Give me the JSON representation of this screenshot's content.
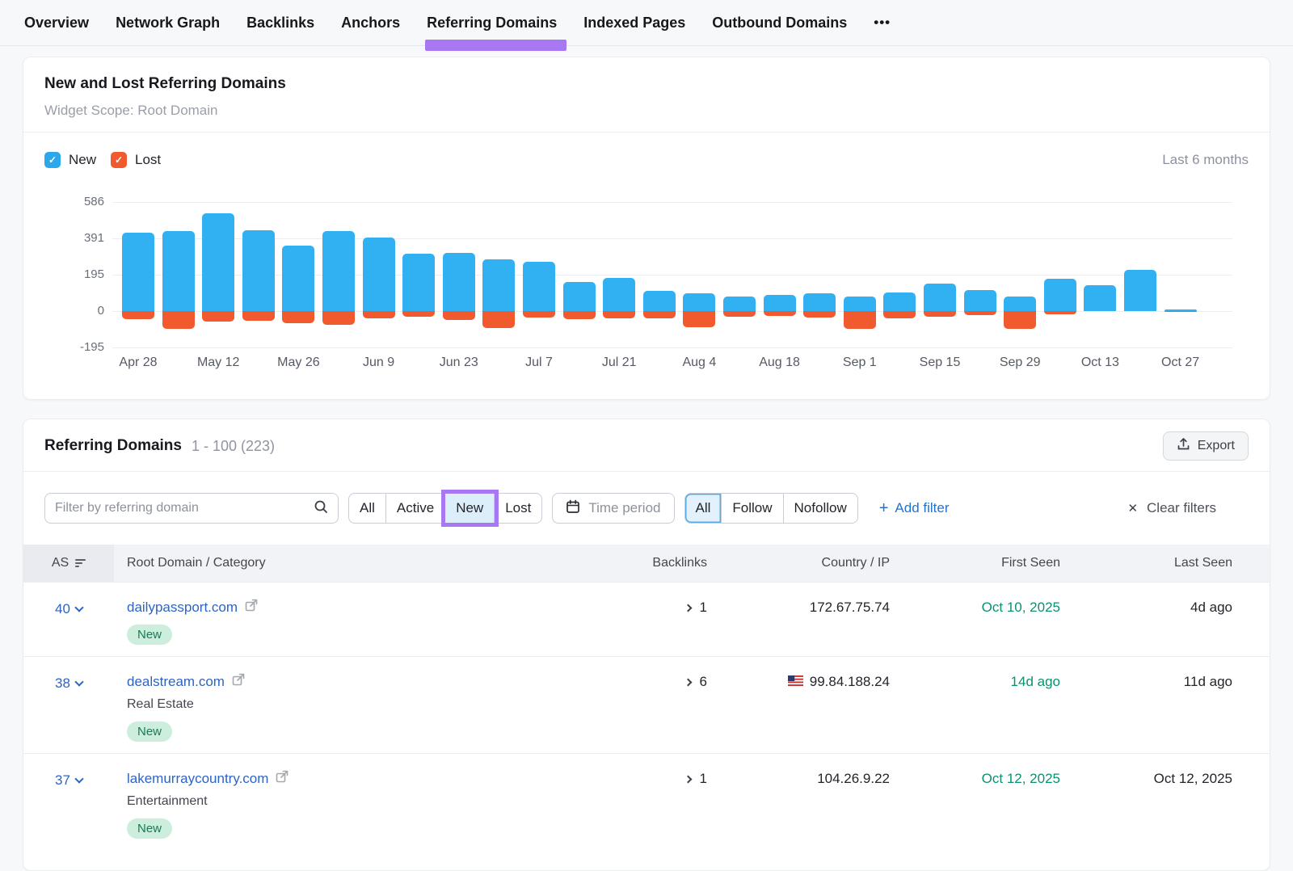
{
  "nav": {
    "tabs": [
      {
        "label": "Overview"
      },
      {
        "label": "Network Graph"
      },
      {
        "label": "Backlinks"
      },
      {
        "label": "Anchors"
      },
      {
        "label": "Referring Domains",
        "active": true
      },
      {
        "label": "Indexed Pages"
      },
      {
        "label": "Outbound Domains"
      }
    ],
    "more_label": "•••"
  },
  "chart_card": {
    "title": "New and Lost Referring Domains",
    "subtitle": "Widget Scope: Root Domain",
    "legend": {
      "new_label": "New",
      "lost_label": "Lost",
      "check_glyph": "✓"
    },
    "range_label": "Last 6 months"
  },
  "chart_data": {
    "type": "bar",
    "stacked": true,
    "title": "New and Lost Referring Domains",
    "x_tick_labels": [
      "Apr 28",
      "",
      "May 12",
      "",
      "May 26",
      "",
      "Jun 9",
      "",
      "Jun 23",
      "",
      "Jul 7",
      "",
      "Jul 21",
      "",
      "Aug 4",
      "",
      "Aug 18",
      "",
      "Sep 1",
      "",
      "Sep 15",
      "",
      "Sep 29",
      "",
      "Oct 13",
      "",
      "Oct 27"
    ],
    "series": [
      {
        "name": "New",
        "color": "#31b0f2",
        "values": [
          420,
          430,
          525,
          435,
          350,
          428,
          395,
          310,
          313,
          280,
          265,
          158,
          180,
          107,
          96,
          77,
          88,
          95,
          77,
          100,
          149,
          111,
          80,
          174,
          138,
          220,
          10
        ]
      },
      {
        "name": "Lost",
        "color": "#f05a2e",
        "values": [
          -45,
          -96,
          -58,
          -51,
          -66,
          -73,
          -37,
          -29,
          -49,
          -90,
          -35,
          -45,
          -39,
          -38,
          -87,
          -31,
          -24,
          -35,
          -94,
          -37,
          -31,
          -21,
          -94,
          -17,
          0,
          0,
          -3
        ]
      }
    ],
    "yticks": [
      586,
      391,
      195,
      0,
      -195
    ],
    "ylim": [
      -195,
      586
    ],
    "grid": true,
    "legend_position": "top-left",
    "xlabel": "",
    "ylabel": ""
  },
  "table_card": {
    "title": "Referring Domains",
    "range_label": "1 - 100 (223)",
    "export_label": "Export",
    "filters": {
      "search_placeholder": "Filter by referring domain",
      "type_segments": [
        "All",
        "Active",
        "New",
        "Lost"
      ],
      "type_selected": "New",
      "time_period_label": "Time period",
      "follow_segments": [
        "All",
        "Follow",
        "Nofollow"
      ],
      "follow_selected": "All",
      "add_filter_label": "Add filter",
      "clear_filters_label": "Clear filters",
      "add_filter_plus": "+",
      "clear_x": "✕"
    },
    "columns": {
      "as": "AS",
      "domain": "Root Domain / Category",
      "backlinks": "Backlinks",
      "country_ip": "Country / IP",
      "first_seen": "First Seen",
      "last_seen": "Last Seen"
    },
    "rows": [
      {
        "as": "40",
        "domain": "dailypassport.com",
        "category": "",
        "badge": "New",
        "backlinks": "1",
        "ip": "172.67.75.74",
        "first_seen": "Oct 10, 2025",
        "last_seen": "4d ago"
      },
      {
        "as": "38",
        "domain": "dealstream.com",
        "category": "Real Estate",
        "badge": "New",
        "backlinks": "6",
        "ip": "99.84.188.24",
        "first_seen": "14d ago",
        "last_seen": "11d ago"
      },
      {
        "as": "37",
        "domain": "lakemurraycountry.com",
        "category": "Entertainment",
        "badge": "New",
        "backlinks": "1",
        "ip": "104.26.9.22",
        "first_seen": "Oct 12, 2025",
        "last_seen": "Oct 12, 2025"
      }
    ]
  },
  "colors": {
    "accent_purple": "#a877f2",
    "chart_new_blue": "#31b0f2",
    "chart_lost_orange": "#f05a2e",
    "link_blue": "#2d64c4",
    "green_text": "#0c9070",
    "badge_bg": "#cdeedd",
    "badge_text": "#187a55"
  }
}
